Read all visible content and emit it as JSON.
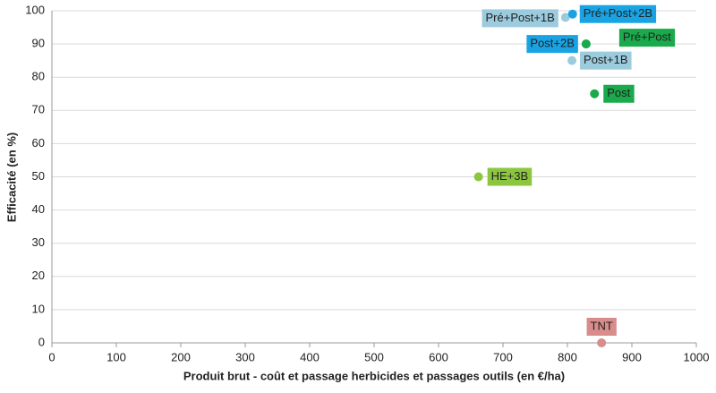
{
  "chart_data": {
    "type": "scatter",
    "xlabel": "Produit brut - coût et passage herbicides et passages outils (en €/ha)",
    "ylabel": "Efficacité (en %)",
    "labels": [
      "Pré+Post+1B",
      "Pré+Post+2B",
      "Post+2B",
      "Pré+Post",
      "Post+1B",
      "Post",
      "HE+3B",
      "TNT"
    ],
    "x": [
      797,
      808,
      829,
      829,
      807,
      842,
      662,
      853
    ],
    "values": [
      98,
      99,
      90,
      90,
      85,
      75,
      50,
      0
    ],
    "colors": [
      "#9ccbde",
      "#1aa3e2",
      "#1aa3e2",
      "#1aaa4b",
      "#9ccbde",
      "#1aaa4b",
      "#8cc63f",
      "#d98c8c"
    ],
    "xlim": [
      0,
      1000
    ],
    "xticks": [
      0,
      100,
      200,
      300,
      400,
      500,
      600,
      700,
      800,
      900,
      1000
    ],
    "ylim": [
      0,
      100
    ],
    "yticks": [
      0,
      10,
      20,
      30,
      40,
      50,
      60,
      70,
      80,
      90,
      100
    ],
    "grid": true
  }
}
